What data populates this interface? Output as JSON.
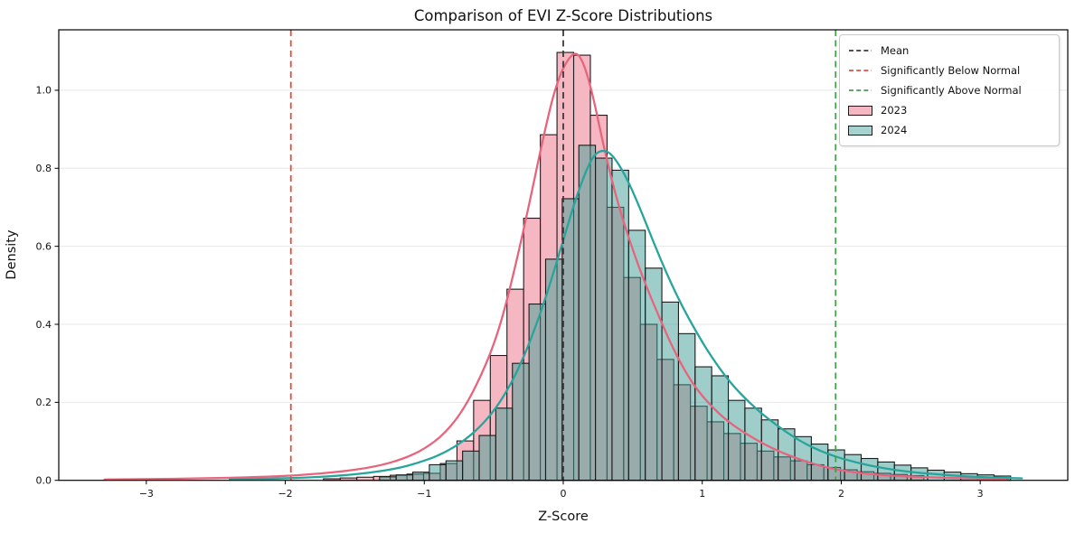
{
  "chart_data": {
    "type": "histogram",
    "subtype": "overlaid histograms with KDE curves and reference vlines",
    "title": "Comparison of EVI Z-Score Distributions",
    "xlabel": "Z-Score",
    "ylabel": "Density",
    "xlim": [
      -3.63,
      3.63
    ],
    "ylim": [
      0,
      1.155
    ],
    "grid": "horizontal-only",
    "grid_color": "#e7e7e7",
    "spine_color": "#000000",
    "legend_position": "upper right",
    "x_tick_values": [
      -3,
      -2,
      -1,
      0,
      1,
      2,
      3
    ],
    "x_tick_labels": [
      "−3",
      "−2",
      "−1",
      "0",
      "1",
      "2",
      "3"
    ],
    "y_tick_values": [
      0,
      0.2,
      0.4,
      0.6,
      0.8,
      1.0
    ],
    "y_tick_labels": [
      "0.0",
      "0.2",
      "0.4",
      "0.6",
      "0.8",
      "1.0"
    ],
    "vlines": [
      {
        "label": "Mean",
        "x": 0.0,
        "color": "#3a3a3a",
        "style": "dashed"
      },
      {
        "label": "Significantly Below Normal",
        "x": -1.96,
        "color": "#e74c3c",
        "style": "dashed"
      },
      {
        "label": "Significantly Above Normal",
        "x": 1.96,
        "color": "#44a04c",
        "style": "dashed"
      }
    ],
    "series": [
      {
        "name": "2023",
        "fill": "#f5b8c3",
        "fill_opacity": 1.0,
        "edge": "#1b1b1b",
        "kde_color": "#e8647c",
        "bin_start": -1.725,
        "bin_width": 0.12,
        "heights": [
          0.004,
          0.006,
          0.008,
          0.01,
          0.013,
          0.016,
          0.018,
          0.043,
          0.101,
          0.205,
          0.32,
          0.49,
          0.672,
          0.886,
          1.097,
          1.09,
          0.936,
          0.7,
          0.52,
          0.4,
          0.31,
          0.245,
          0.19,
          0.15,
          0.12,
          0.095,
          0.075,
          0.06,
          0.05,
          0.04,
          0.033,
          0.027,
          0.022,
          0.018,
          0.015,
          0.012
        ],
        "kde_x": [
          -3.3,
          -3.0,
          -2.6,
          -2.2,
          -1.9,
          -1.6,
          -1.35,
          -1.15,
          -1.0,
          -0.85,
          -0.7,
          -0.55,
          -0.45,
          -0.35,
          -0.25,
          -0.15,
          -0.05,
          0.05,
          0.12,
          0.2,
          0.3,
          0.4,
          0.5,
          0.6,
          0.7,
          0.8,
          0.9,
          1.0,
          1.15,
          1.3,
          1.5,
          1.7,
          1.9,
          2.1,
          2.3,
          2.6,
          2.9,
          3.2
        ],
        "kde_y": [
          0.002,
          0.003,
          0.005,
          0.008,
          0.013,
          0.022,
          0.035,
          0.055,
          0.08,
          0.12,
          0.19,
          0.3,
          0.4,
          0.54,
          0.7,
          0.87,
          1.02,
          1.092,
          1.095,
          1.01,
          0.84,
          0.7,
          0.59,
          0.495,
          0.41,
          0.33,
          0.265,
          0.215,
          0.16,
          0.122,
          0.082,
          0.053,
          0.032,
          0.02,
          0.013,
          0.008,
          0.005,
          0.003
        ]
      },
      {
        "name": "2024",
        "fill": "#3f9e95",
        "fill_opacity": 0.5,
        "edge": "#1b1b1b",
        "kde_color": "#27a59c",
        "bin_start": -1.322,
        "bin_width": 0.1195,
        "heights": [
          0.009,
          0.014,
          0.021,
          0.04,
          0.05,
          0.075,
          0.115,
          0.185,
          0.3,
          0.452,
          0.567,
          0.722,
          0.859,
          0.826,
          0.795,
          0.641,
          0.544,
          0.457,
          0.376,
          0.291,
          0.268,
          0.205,
          0.185,
          0.155,
          0.132,
          0.112,
          0.093,
          0.078,
          0.066,
          0.056,
          0.047,
          0.039,
          0.032,
          0.026,
          0.021,
          0.017,
          0.014,
          0.011
        ],
        "kde_x": [
          -2.4,
          -2.1,
          -1.85,
          -1.6,
          -1.4,
          -1.2,
          -1.05,
          -0.9,
          -0.75,
          -0.6,
          -0.45,
          -0.3,
          -0.15,
          0.0,
          0.1,
          0.2,
          0.27,
          0.35,
          0.45,
          0.55,
          0.65,
          0.75,
          0.85,
          0.95,
          1.05,
          1.2,
          1.35,
          1.5,
          1.7,
          1.9,
          2.1,
          2.3,
          2.5,
          2.7,
          2.9,
          3.1,
          3.3
        ],
        "kde_y": [
          0.002,
          0.004,
          0.007,
          0.012,
          0.019,
          0.03,
          0.044,
          0.063,
          0.092,
          0.135,
          0.2,
          0.3,
          0.44,
          0.615,
          0.735,
          0.825,
          0.848,
          0.838,
          0.78,
          0.7,
          0.61,
          0.525,
          0.45,
          0.385,
          0.325,
          0.25,
          0.195,
          0.15,
          0.1,
          0.067,
          0.046,
          0.031,
          0.021,
          0.015,
          0.01,
          0.007,
          0.005
        ]
      }
    ]
  },
  "legend": {
    "entries": [
      {
        "type": "line",
        "label": "Mean",
        "color": "#3a3a3a"
      },
      {
        "type": "line",
        "label": "Significantly Below Normal",
        "color": "#e74c3c"
      },
      {
        "type": "line",
        "label": "Significantly Above Normal",
        "color": "#44a04c"
      },
      {
        "type": "patch",
        "label": "2023",
        "color": "#f5b8c3"
      },
      {
        "type": "patch",
        "label": "2024",
        "color": "#a6d2cf"
      }
    ]
  }
}
